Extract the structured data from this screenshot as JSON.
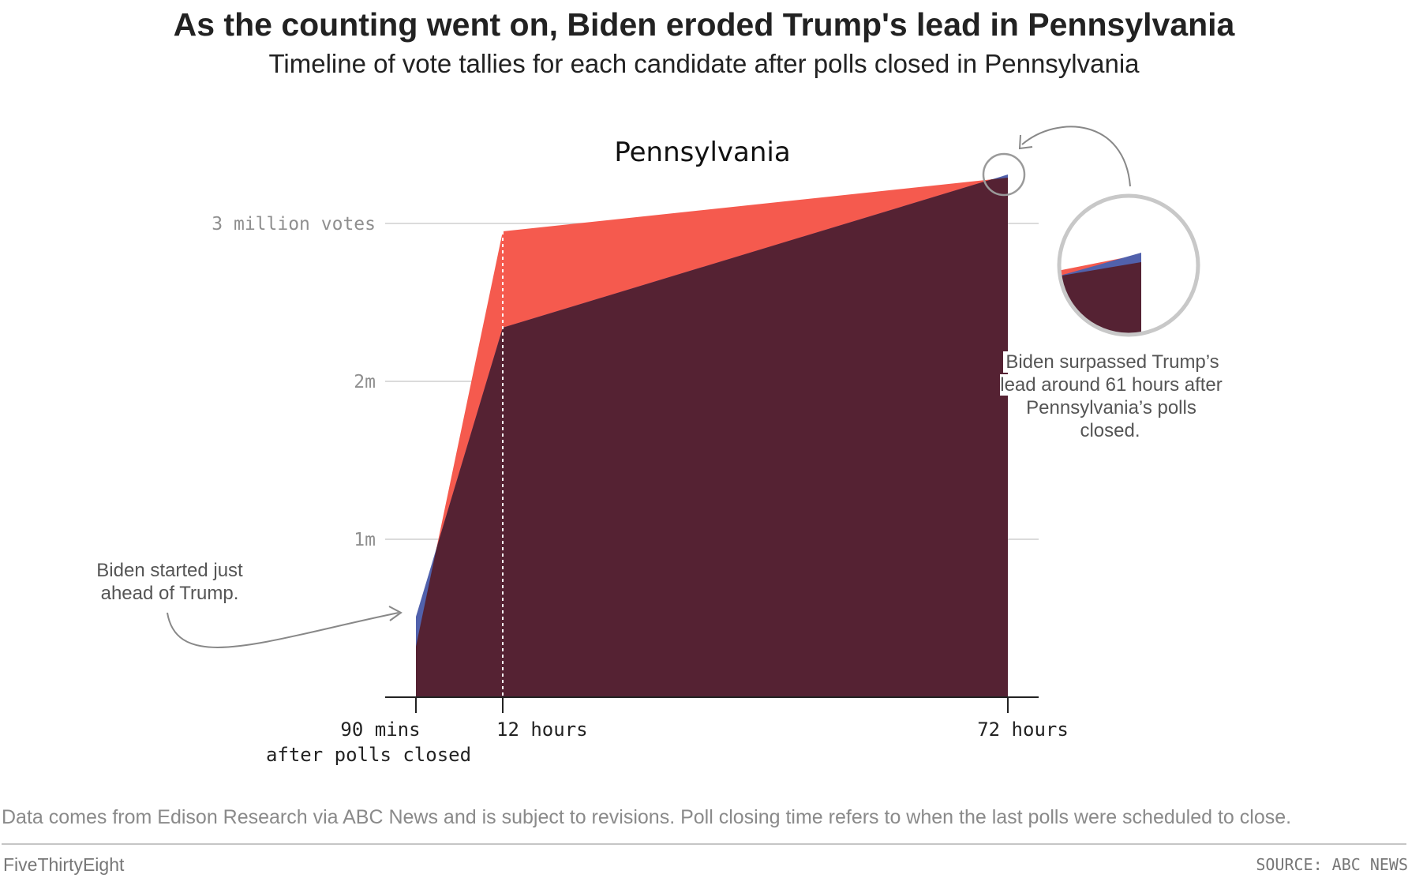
{
  "header": {
    "title": "As the counting went on, Biden eroded Trump's lead in Pennsylvania",
    "subtitle": "Timeline of vote tallies for each candidate after polls closed in Pennsylvania"
  },
  "chart_data": {
    "type": "area",
    "title": "Pennsylvania",
    "x_ticks": [
      "90 mins",
      "12 hours",
      "72 hours"
    ],
    "x_tick_sub": "after polls closed",
    "y_ticks": [
      {
        "value": 1000000,
        "label": "1m"
      },
      {
        "value": 2000000,
        "label": "2m"
      },
      {
        "value": 3000000,
        "label": "3 million votes"
      }
    ],
    "ylim": [
      0,
      3350000
    ],
    "x_hours": [
      1.5,
      12,
      72
    ],
    "series": [
      {
        "key": "trump",
        "color": "#f55a4e",
        "values": [
          320000,
          2950000,
          3290000
        ]
      },
      {
        "key": "biden",
        "color": "#5161ac",
        "values": [
          510000,
          2340000,
          3310000
        ]
      }
    ],
    "overlap_color": "#552233",
    "inset": {
      "label": "magnified view near 72 hours"
    }
  },
  "annotations": {
    "start": "Biden started just ahead of Trump.",
    "surpass": "Biden surpassed Trump’s lead around 61 hours after Pennsylvania’s polls closed."
  },
  "footer": {
    "note": "Data comes from Edison Research via ABC News and is subject to revisions. Poll closing time refers to when the last polls were scheduled to close.",
    "brand": "FiveThirtyEight",
    "source": "SOURCE: ABC NEWS"
  }
}
